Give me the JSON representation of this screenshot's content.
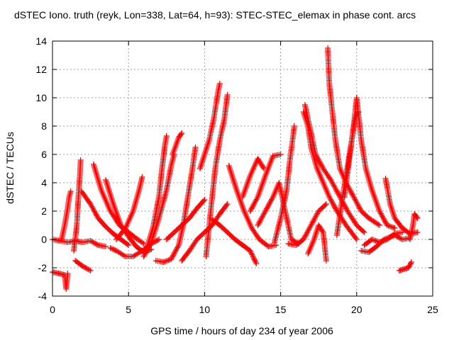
{
  "chart_data": {
    "type": "scatter",
    "title": "dSTEC Iono. truth (reyk, Lon=338, Lat=64, h=93): STEC-STEC_elemax in phase cont. arcs",
    "xlabel": "GPS time / hours of day 234 of year 2006",
    "ylabel": "dSTEC  / TECUs",
    "xlim": [
      0,
      25
    ],
    "ylim": [
      -4,
      14
    ],
    "xticks": [
      "0",
      "5",
      "10",
      "15",
      "20",
      "25"
    ],
    "yticks": [
      "-4",
      "-2",
      "0",
      "2",
      "4",
      "6",
      "8",
      "10",
      "12",
      "14"
    ],
    "grid": true,
    "marker": "+",
    "color": "#ff0000",
    "series": [
      {
        "segments": [
          [
            [
              0.0,
              -2.3
            ],
            [
              0.4,
              -2.4
            ],
            [
              0.8,
              -2.5
            ],
            [
              0.9,
              -3.5
            ],
            [
              1.0,
              -2.4
            ]
          ],
          [
            [
              0.0,
              0.0
            ],
            [
              0.5,
              -0.1
            ],
            [
              1.0,
              -0.2
            ],
            [
              1.5,
              -0.1
            ],
            [
              2.0,
              -0.2
            ],
            [
              2.5,
              -0.1
            ],
            [
              3.0,
              -0.4
            ],
            [
              3.5,
              -0.5
            ]
          ],
          [
            [
              0.6,
              0.0
            ],
            [
              0.8,
              1.0
            ],
            [
              1.0,
              2.2
            ],
            [
              1.1,
              3.0
            ],
            [
              1.2,
              3.4
            ]
          ],
          [
            [
              1.4,
              -0.8
            ],
            [
              1.6,
              1.0
            ],
            [
              1.7,
              3.0
            ],
            [
              1.8,
              4.5
            ],
            [
              1.85,
              5.6
            ]
          ],
          [
            [
              1.5,
              -1.5
            ],
            [
              2.0,
              -1.9
            ],
            [
              2.5,
              -2.2
            ]
          ],
          [
            [
              1.9,
              3.4
            ],
            [
              2.5,
              2.5
            ],
            [
              3.0,
              1.5
            ],
            [
              3.5,
              0.9
            ],
            [
              4.0,
              0.4
            ],
            [
              4.5,
              0.0
            ],
            [
              5.0,
              -0.4
            ]
          ],
          [
            [
              2.7,
              5.3
            ],
            [
              3.2,
              3.5
            ],
            [
              3.8,
              2.0
            ],
            [
              4.4,
              1.0
            ],
            [
              5.0,
              0.5
            ],
            [
              5.6,
              0.0
            ],
            [
              6.0,
              -0.3
            ]
          ],
          [
            [
              3.5,
              4.2
            ],
            [
              4.0,
              2.5
            ],
            [
              4.5,
              1.0
            ],
            [
              5.0,
              0.2
            ],
            [
              5.5,
              -0.5
            ],
            [
              6.0,
              -0.9
            ],
            [
              6.5,
              -0.7
            ]
          ],
          [
            [
              3.8,
              -0.6
            ],
            [
              4.2,
              -0.8
            ],
            [
              4.8,
              -1.2
            ],
            [
              5.3,
              -1.2
            ],
            [
              5.9,
              -0.8
            ],
            [
              6.5,
              -0.3
            ],
            [
              7.0,
              0.0
            ]
          ],
          [
            [
              4.2,
              0.0
            ],
            [
              4.8,
              0.8
            ],
            [
              5.3,
              2.0
            ],
            [
              5.7,
              3.5
            ],
            [
              5.9,
              4.4
            ]
          ],
          [
            [
              6.0,
              -1.2
            ],
            [
              6.5,
              -0.2
            ],
            [
              7.0,
              1.5
            ],
            [
              7.5,
              3.5
            ],
            [
              7.8,
              5.2
            ],
            [
              8.0,
              6.0
            ]
          ],
          [
            [
              6.2,
              -0.6
            ],
            [
              6.6,
              0.8
            ],
            [
              7.0,
              3.0
            ],
            [
              7.2,
              5.0
            ],
            [
              7.4,
              6.7
            ],
            [
              7.5,
              7.3
            ]
          ],
          [
            [
              6.8,
              -1.5
            ],
            [
              7.3,
              -1.6
            ],
            [
              7.8,
              -1.4
            ],
            [
              8.3,
              -0.4
            ],
            [
              8.6,
              1.0
            ],
            [
              8.9,
              3.0
            ],
            [
              9.2,
              5.0
            ],
            [
              9.4,
              6.5
            ]
          ],
          [
            [
              7.9,
              6.0
            ],
            [
              8.3,
              7.2
            ],
            [
              8.5,
              7.5
            ]
          ],
          [
            [
              7.5,
              0.0
            ],
            [
              8.0,
              0.5
            ],
            [
              8.5,
              1.0
            ],
            [
              9.0,
              1.5
            ],
            [
              9.5,
              2.2
            ],
            [
              10.0,
              2.8
            ]
          ],
          [
            [
              8.5,
              -1.5
            ],
            [
              9.0,
              -0.8
            ],
            [
              9.5,
              0.0
            ],
            [
              10.0,
              0.5
            ],
            [
              10.5,
              1.0
            ],
            [
              11.0,
              1.8
            ],
            [
              11.5,
              2.5
            ]
          ],
          [
            [
              9.7,
              5.0
            ],
            [
              10.0,
              6.0
            ],
            [
              10.3,
              7.0
            ],
            [
              10.6,
              8.5
            ],
            [
              10.9,
              10.5
            ],
            [
              11.0,
              11.0
            ]
          ],
          [
            [
              10.1,
              -1.2
            ],
            [
              10.4,
              2.0
            ],
            [
              10.7,
              5.0
            ],
            [
              11.0,
              7.0
            ],
            [
              11.3,
              8.5
            ],
            [
              11.5,
              10.2
            ]
          ],
          [
            [
              10.5,
              1.4
            ],
            [
              11.0,
              1.0
            ],
            [
              11.5,
              0.5
            ],
            [
              12.0,
              0.0
            ],
            [
              12.5,
              -0.4
            ],
            [
              13.0,
              -0.8
            ],
            [
              13.4,
              -1.7
            ]
          ],
          [
            [
              11.6,
              5.2
            ],
            [
              12.1,
              3.5
            ],
            [
              12.6,
              2.0
            ],
            [
              13.1,
              0.8
            ],
            [
              13.6,
              0.0
            ],
            [
              14.2,
              -0.5
            ],
            [
              14.7,
              -0.4
            ]
          ],
          [
            [
              12.5,
              3.0
            ],
            [
              13.0,
              4.5
            ],
            [
              13.5,
              5.7
            ],
            [
              13.9,
              5.0
            ]
          ],
          [
            [
              13.0,
              2.0
            ],
            [
              13.5,
              3.0
            ],
            [
              14.0,
              4.5
            ],
            [
              14.5,
              5.9
            ],
            [
              15.0,
              6.0
            ]
          ],
          [
            [
              13.5,
              1.0
            ],
            [
              14.0,
              2.0
            ],
            [
              14.5,
              3.0
            ],
            [
              14.9,
              4.0
            ],
            [
              15.3,
              2.0
            ],
            [
              15.7,
              0.0
            ],
            [
              16.2,
              -0.3
            ]
          ],
          [
            [
              14.6,
              -0.2
            ],
            [
              15.0,
              1.5
            ],
            [
              15.4,
              3.5
            ],
            [
              15.6,
              5.5
            ],
            [
              15.9,
              8.0
            ]
          ],
          [
            [
              15.5,
              -0.3
            ],
            [
              16.0,
              -0.4
            ],
            [
              16.5,
              0.0
            ],
            [
              17.0,
              1.0
            ],
            [
              17.5,
              2.0
            ],
            [
              18.0,
              2.5
            ]
          ],
          [
            [
              16.5,
              9.0
            ],
            [
              16.8,
              8.0
            ],
            [
              17.0,
              6.5
            ],
            [
              17.4,
              5.0
            ],
            [
              17.8,
              4.0
            ],
            [
              18.2,
              3.0
            ],
            [
              18.7,
              2.0
            ],
            [
              19.3,
              1.0
            ],
            [
              20.0,
              0.0
            ]
          ],
          [
            [
              16.6,
              9.5
            ],
            [
              16.9,
              8.0
            ],
            [
              17.3,
              6.0
            ],
            [
              17.8,
              5.0
            ],
            [
              18.3,
              4.2
            ],
            [
              18.9,
              3.0
            ],
            [
              19.4,
              2.0
            ],
            [
              20.0,
              1.0
            ],
            [
              20.5,
              0.5
            ]
          ],
          [
            [
              16.8,
              -1.0
            ],
            [
              17.2,
              0.0
            ],
            [
              17.5,
              1.0
            ],
            [
              17.8,
              0.5
            ],
            [
              18.0,
              -1.5
            ]
          ],
          [
            [
              18.1,
              13.5
            ],
            [
              18.2,
              11.0
            ],
            [
              18.4,
              9.0
            ],
            [
              18.6,
              7.0
            ],
            [
              18.9,
              5.0
            ],
            [
              19.3,
              4.0
            ],
            [
              19.8,
              3.0
            ],
            [
              20.3,
              2.0
            ],
            [
              20.8,
              1.5
            ],
            [
              21.5,
              1.0
            ]
          ],
          [
            [
              18.7,
              0.3
            ],
            [
              19.0,
              2.5
            ],
            [
              19.3,
              4.5
            ],
            [
              19.6,
              6.5
            ],
            [
              19.9,
              8.5
            ],
            [
              20.1,
              9.0
            ]
          ],
          [
            [
              19.2,
              3.0
            ],
            [
              19.5,
              5.5
            ],
            [
              19.8,
              8.0
            ],
            [
              20.0,
              10.0
            ],
            [
              20.3,
              7.0
            ],
            [
              20.6,
              5.0
            ],
            [
              21.0,
              3.5
            ],
            [
              21.5,
              2.0
            ],
            [
              22.0,
              1.0
            ],
            [
              22.5,
              0.8
            ]
          ],
          [
            [
              20.3,
              -0.8
            ],
            [
              20.8,
              -0.9
            ],
            [
              21.3,
              -0.5
            ],
            [
              21.8,
              0.0
            ],
            [
              22.5,
              0.3
            ],
            [
              23.0,
              0.0
            ],
            [
              23.5,
              0.1
            ]
          ],
          [
            [
              20.5,
              -0.4
            ],
            [
              21.0,
              0.0
            ],
            [
              21.5,
              -0.2
            ],
            [
              22.0,
              0.0
            ],
            [
              22.5,
              0.4
            ],
            [
              23.0,
              0.5
            ]
          ],
          [
            [
              21.9,
              4.3
            ],
            [
              22.2,
              2.5
            ],
            [
              22.5,
              1.5
            ],
            [
              23.0,
              0.8
            ],
            [
              23.5,
              0.4
            ],
            [
              24.0,
              0.5
            ]
          ],
          [
            [
              22.8,
              -2.2
            ],
            [
              23.1,
              -2.1
            ],
            [
              23.4,
              -2.0
            ],
            [
              23.6,
              -1.6
            ]
          ],
          [
            [
              23.5,
              0.0
            ],
            [
              23.7,
              1.0
            ],
            [
              23.8,
              1.8
            ],
            [
              24.0,
              1.5
            ]
          ]
        ]
      }
    ]
  }
}
